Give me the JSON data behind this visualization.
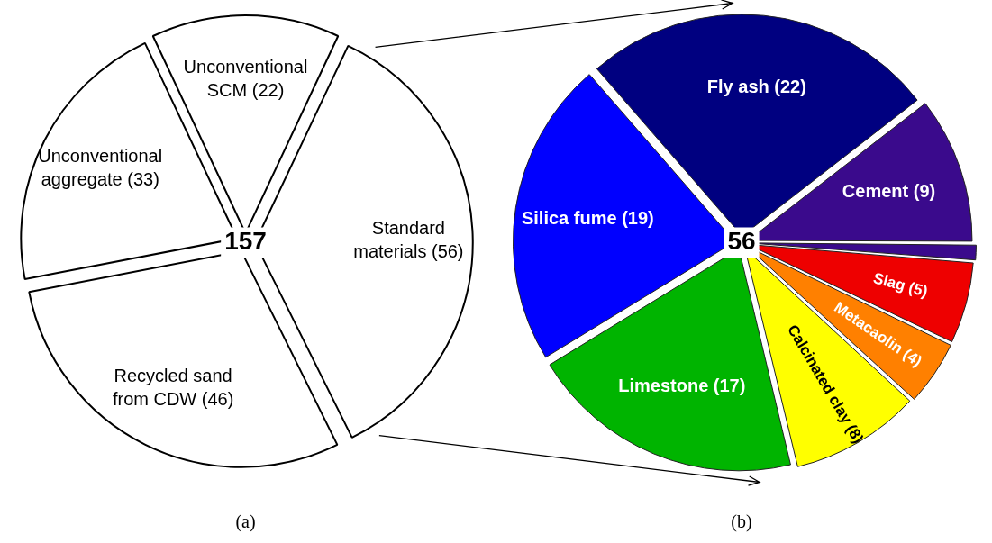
{
  "chart_data": [
    {
      "type": "pie",
      "categories": [
        "Unconventional SCM",
        "Standard materials",
        "Recycled sand from CDW",
        "Unconventional aggregate"
      ],
      "values": [
        22,
        56,
        46,
        33
      ],
      "value_labels": [
        "(22)",
        "(56)",
        "(46)",
        "(33)"
      ],
      "colors": [
        "#ffffff",
        "#ffffff",
        "#ffffff",
        "#ffffff"
      ],
      "annotations": [
        "157",
        "(a)"
      ]
    },
    {
      "type": "pie",
      "categories": [
        "Fly ash",
        "Cement",
        null,
        "Slag",
        "Metacaolin",
        "Calcinated clay",
        "Limestone",
        "Silica fume"
      ],
      "values": [
        22,
        9,
        1,
        5,
        4,
        8,
        17,
        19
      ],
      "value_labels": [
        "(22)",
        "(9)",
        null,
        "(5)",
        "(4)",
        "(8)",
        "(17)",
        "(19)"
      ],
      "colors": [
        "#000080",
        "#3a0a8c",
        "#3a0a8c",
        "#ee0000",
        "#ff8000",
        "#ffff00",
        "#00b400",
        "#0000ff"
      ],
      "annotations": [
        "56",
        "(b)"
      ]
    }
  ]
}
